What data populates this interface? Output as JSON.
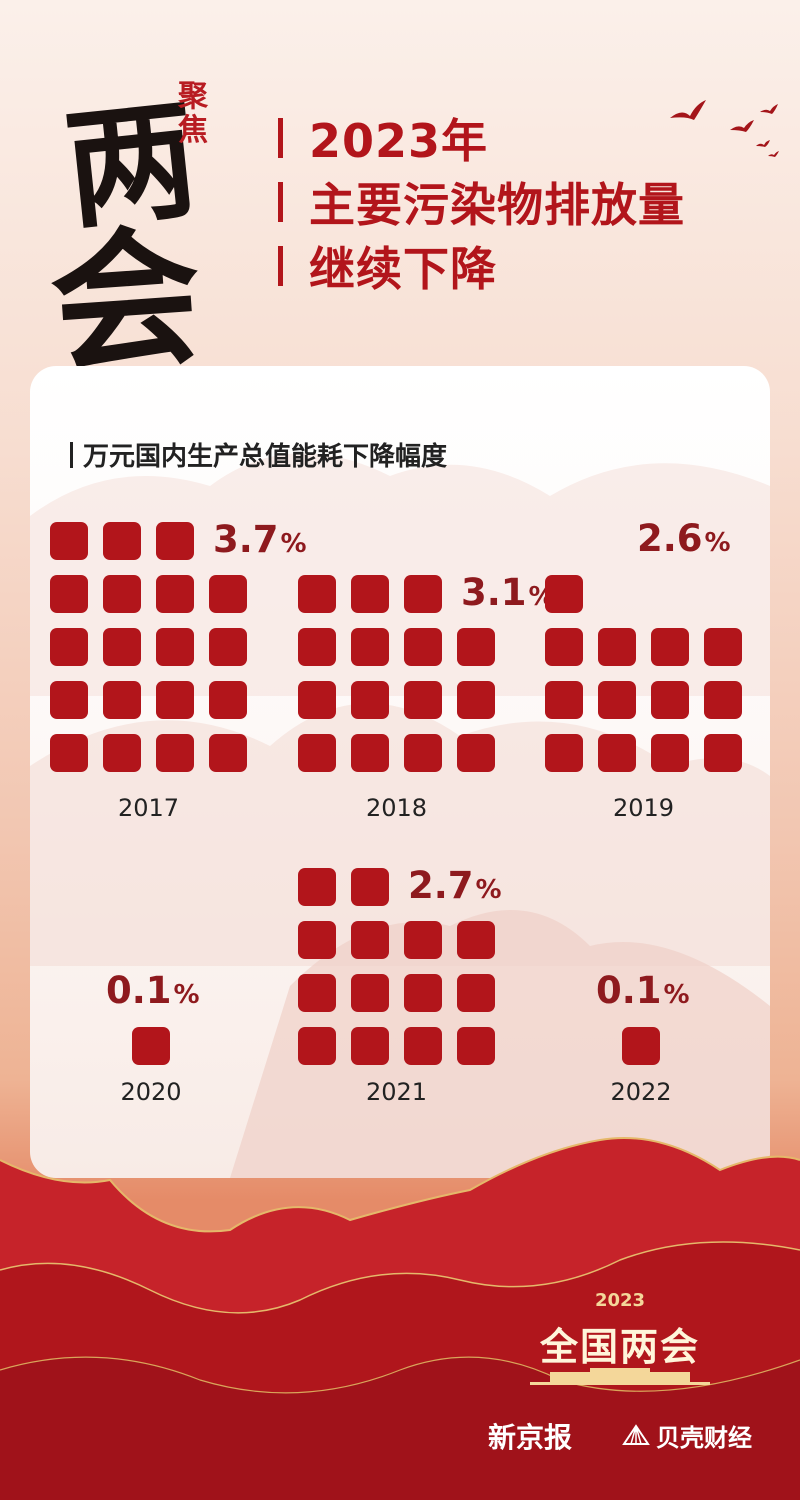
{
  "header": {
    "calligraphy_main": [
      "两",
      "会"
    ],
    "calligraphy_seal": "聚焦",
    "title_lines": [
      "2023年",
      "主要污染物排放量",
      "继续下降"
    ]
  },
  "chart_data": {
    "type": "waffle",
    "title": "万元国内生产总值能耗下降幅度",
    "unit": "%",
    "categories": [
      "2017",
      "2018",
      "2019",
      "2020",
      "2021",
      "2022"
    ],
    "values": [
      3.7,
      3.1,
      2.6,
      0.1,
      2.7,
      0.1
    ],
    "value_labels": [
      "3.7",
      "3.1",
      "2.6",
      "0.1",
      "2.7",
      "0.1"
    ],
    "squares": [
      19,
      15,
      13,
      1,
      14,
      1
    ],
    "colors": {
      "square": "#b2151b",
      "value": "#8e1a1e"
    }
  },
  "footer": {
    "logo_year": "2023",
    "logo_name": "全国两会",
    "brands": [
      "新京报",
      "贝壳财经"
    ]
  }
}
